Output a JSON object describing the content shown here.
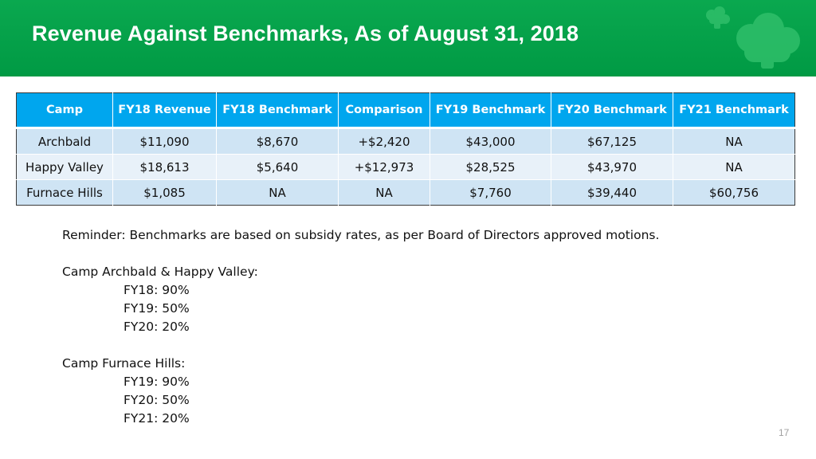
{
  "header": {
    "title": "Revenue Against Benchmarks, As of August 31, 2018",
    "logo_icon": "trefoil-logo-icon",
    "background_color": "#009a44"
  },
  "table": {
    "header_color": "#00a6ee",
    "columns": [
      "Camp",
      "FY18 Revenue",
      "FY18 Benchmark",
      "Comparison",
      "FY19 Benchmark",
      "FY20 Benchmark",
      "FY21 Benchmark"
    ],
    "rows": [
      [
        "Archbald",
        "$11,090",
        "$8,670",
        "+$2,420",
        "$43,000",
        "$67,125",
        "NA"
      ],
      [
        "Happy Valley",
        "$18,613",
        "$5,640",
        "+$12,973",
        "$28,525",
        "$43,970",
        "NA"
      ],
      [
        "Furnace Hills",
        "$1,085",
        "NA",
        "NA",
        "$7,760",
        "$39,440",
        "$60,756"
      ]
    ]
  },
  "notes": {
    "reminder": "Reminder: Benchmarks are based on subsidy rates, as per Board of Directors approved motions.",
    "groups": [
      {
        "heading": "Camp Archbald & Happy Valley:",
        "items": [
          "FY18: 90%",
          "FY19: 50%",
          "FY20: 20%"
        ]
      },
      {
        "heading": "Camp Furnace Hills:",
        "items": [
          "FY19: 90%",
          "FY20: 50%",
          "FY21: 20%"
        ]
      }
    ]
  },
  "footer": {
    "page_number": "17"
  }
}
